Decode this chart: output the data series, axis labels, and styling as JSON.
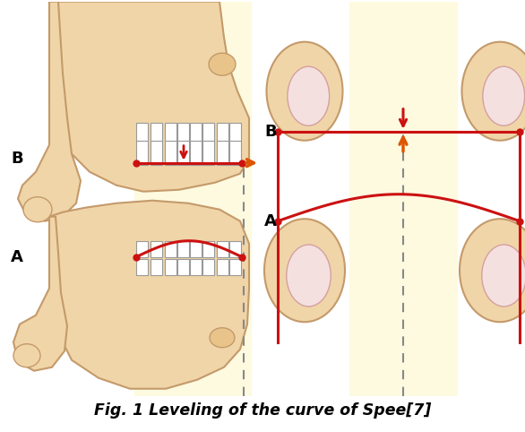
{
  "title": "Fig. 1 Leveling of the curve of Spee[7]",
  "title_fontsize": 12.5,
  "title_fontweight": "bold",
  "fig_width": 5.86,
  "fig_height": 4.82,
  "background_color": "#ffffff",
  "label_B_left": "B",
  "label_A_left": "A",
  "label_B_right": "B",
  "label_A_right": "A",
  "label_fontsize": 13,
  "label_fontweight": "bold",
  "yellow_band_color": "#FEFAE0",
  "red_color": "#CC1111",
  "orange_arrow_color": "#DD5500",
  "dashed_color": "#888888",
  "skin_light": "#F0D5A8",
  "skin_mid": "#E8C48A",
  "skin_dark": "#C49A6A",
  "nail_fill": "#F5DCDC",
  "nail_edge": "#D4A0A0",
  "tooth_fill": "#FFFFFF",
  "tooth_edge": "#AAAAAA"
}
